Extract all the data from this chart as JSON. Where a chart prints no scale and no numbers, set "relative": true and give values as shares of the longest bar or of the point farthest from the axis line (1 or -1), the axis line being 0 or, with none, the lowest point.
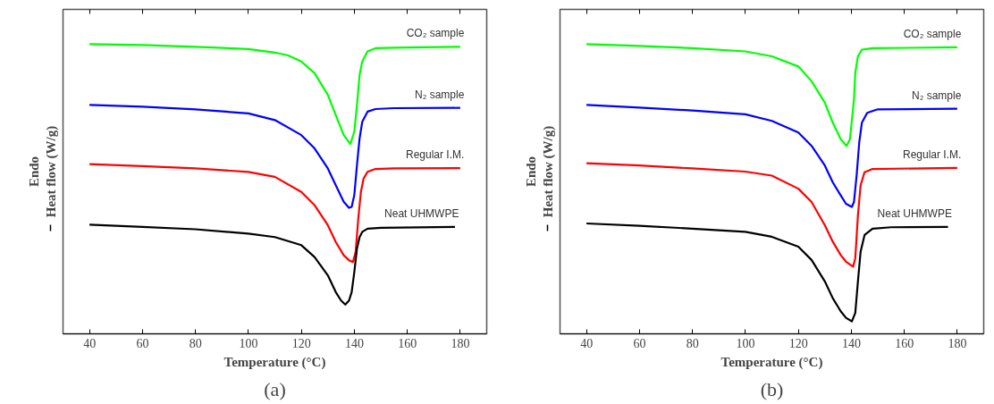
{
  "chart_data": [
    {
      "type": "line",
      "title": "(a)",
      "xlabel": "Temperature (°C)",
      "ylabel": "Heat flow (W/g)",
      "annotations": [
        "Endo"
      ],
      "relative": true,
      "xlim": [
        30,
        190
      ],
      "xticks": [
        40,
        60,
        80,
        100,
        120,
        140,
        160,
        180
      ],
      "grid": false,
      "marker": "none",
      "line_style": "solid",
      "series": [
        {
          "name": "CO₂ sample",
          "color": "#00ff00",
          "x": [
            40,
            60,
            80,
            100,
            110,
            115,
            120,
            125,
            130,
            133,
            136,
            138.5,
            140,
            141,
            142,
            143,
            145,
            148,
            155,
            180
          ],
          "values": [
            1.0,
            0.997,
            0.991,
            0.983,
            0.971,
            0.961,
            0.94,
            0.9,
            0.825,
            0.755,
            0.686,
            0.655,
            0.698,
            0.79,
            0.894,
            0.94,
            0.975,
            0.986,
            0.988,
            0.991
          ]
        },
        {
          "name": "N₂ sample",
          "color": "#0000ff",
          "x": [
            40,
            60,
            80,
            100,
            110,
            120,
            125,
            130,
            133,
            136,
            138,
            139,
            140,
            141,
            142,
            143,
            145,
            148,
            155,
            180
          ],
          "values": [
            0.79,
            0.784,
            0.775,
            0.761,
            0.738,
            0.686,
            0.64,
            0.571,
            0.513,
            0.456,
            0.435,
            0.438,
            0.479,
            0.582,
            0.675,
            0.732,
            0.767,
            0.776,
            0.779,
            0.78
          ]
        },
        {
          "name": "Regular I.M.",
          "color": "#ff0000",
          "x": [
            40,
            60,
            80,
            100,
            110,
            120,
            125,
            130,
            133,
            136,
            138,
            139.5,
            140.5,
            141.5,
            142.5,
            143.5,
            145,
            148,
            155,
            180
          ],
          "values": [
            0.586,
            0.579,
            0.571,
            0.559,
            0.542,
            0.49,
            0.444,
            0.375,
            0.317,
            0.271,
            0.254,
            0.248,
            0.283,
            0.398,
            0.49,
            0.536,
            0.559,
            0.569,
            0.571,
            0.572
          ]
        },
        {
          "name": "Neat UHMWPE",
          "color": "#000000",
          "x": [
            40,
            60,
            80,
            100,
            110,
            120,
            125,
            130,
            133,
            135,
            136.6,
            138,
            139,
            140,
            141,
            142,
            143,
            145,
            150,
            178
          ],
          "values": [
            0.377,
            0.369,
            0.361,
            0.346,
            0.334,
            0.306,
            0.265,
            0.202,
            0.144,
            0.115,
            0.101,
            0.115,
            0.144,
            0.213,
            0.294,
            0.334,
            0.352,
            0.363,
            0.366,
            0.369
          ]
        }
      ]
    },
    {
      "type": "line",
      "title": "(b)",
      "xlabel": "Temperature (°C)",
      "ylabel": "Heat flow (W/g)",
      "annotations": [
        "Endo"
      ],
      "relative": true,
      "xlim": [
        30,
        190
      ],
      "xticks": [
        40,
        60,
        80,
        100,
        120,
        140,
        160,
        180
      ],
      "grid": false,
      "marker": "none",
      "line_style": "solid",
      "series": [
        {
          "name": "CO₂ sample",
          "color": "#00ff00",
          "x": [
            40,
            60,
            80,
            100,
            110,
            120,
            125,
            130,
            133,
            136,
            138.2,
            139.5,
            141,
            141.5,
            142.5,
            144,
            148,
            180
          ],
          "values": [
            1.0,
            0.994,
            0.986,
            0.975,
            0.958,
            0.923,
            0.872,
            0.798,
            0.729,
            0.672,
            0.649,
            0.672,
            0.809,
            0.901,
            0.958,
            0.981,
            0.986,
            0.989
          ]
        },
        {
          "name": "N₂ sample",
          "color": "#0000ff",
          "x": [
            40,
            60,
            80,
            100,
            110,
            120,
            125,
            130,
            133,
            136,
            138,
            140.2,
            141,
            142,
            143,
            144,
            146,
            150,
            180
          ],
          "values": [
            0.79,
            0.781,
            0.771,
            0.758,
            0.735,
            0.695,
            0.649,
            0.581,
            0.523,
            0.478,
            0.449,
            0.438,
            0.455,
            0.546,
            0.661,
            0.729,
            0.763,
            0.775,
            0.777
          ]
        },
        {
          "name": "Regular I.M.",
          "color": "#ff0000",
          "x": [
            40,
            60,
            80,
            100,
            110,
            120,
            125,
            130,
            133,
            136,
            138,
            140.7,
            141.5,
            142.5,
            143.5,
            145,
            148,
            180
          ],
          "values": [
            0.589,
            0.581,
            0.571,
            0.56,
            0.546,
            0.501,
            0.455,
            0.375,
            0.318,
            0.272,
            0.249,
            0.232,
            0.261,
            0.409,
            0.512,
            0.558,
            0.569,
            0.573
          ]
        },
        {
          "name": "Neat UHMWPE",
          "color": "#000000",
          "x": [
            40,
            60,
            80,
            100,
            110,
            120,
            125,
            130,
            133,
            136,
            138,
            140.2,
            141.5,
            142.5,
            143.5,
            145,
            148,
            155,
            176.5
          ],
          "values": [
            0.381,
            0.373,
            0.363,
            0.352,
            0.335,
            0.301,
            0.255,
            0.181,
            0.123,
            0.078,
            0.055,
            0.043,
            0.072,
            0.181,
            0.283,
            0.341,
            0.363,
            0.368,
            0.369
          ]
        }
      ]
    }
  ]
}
